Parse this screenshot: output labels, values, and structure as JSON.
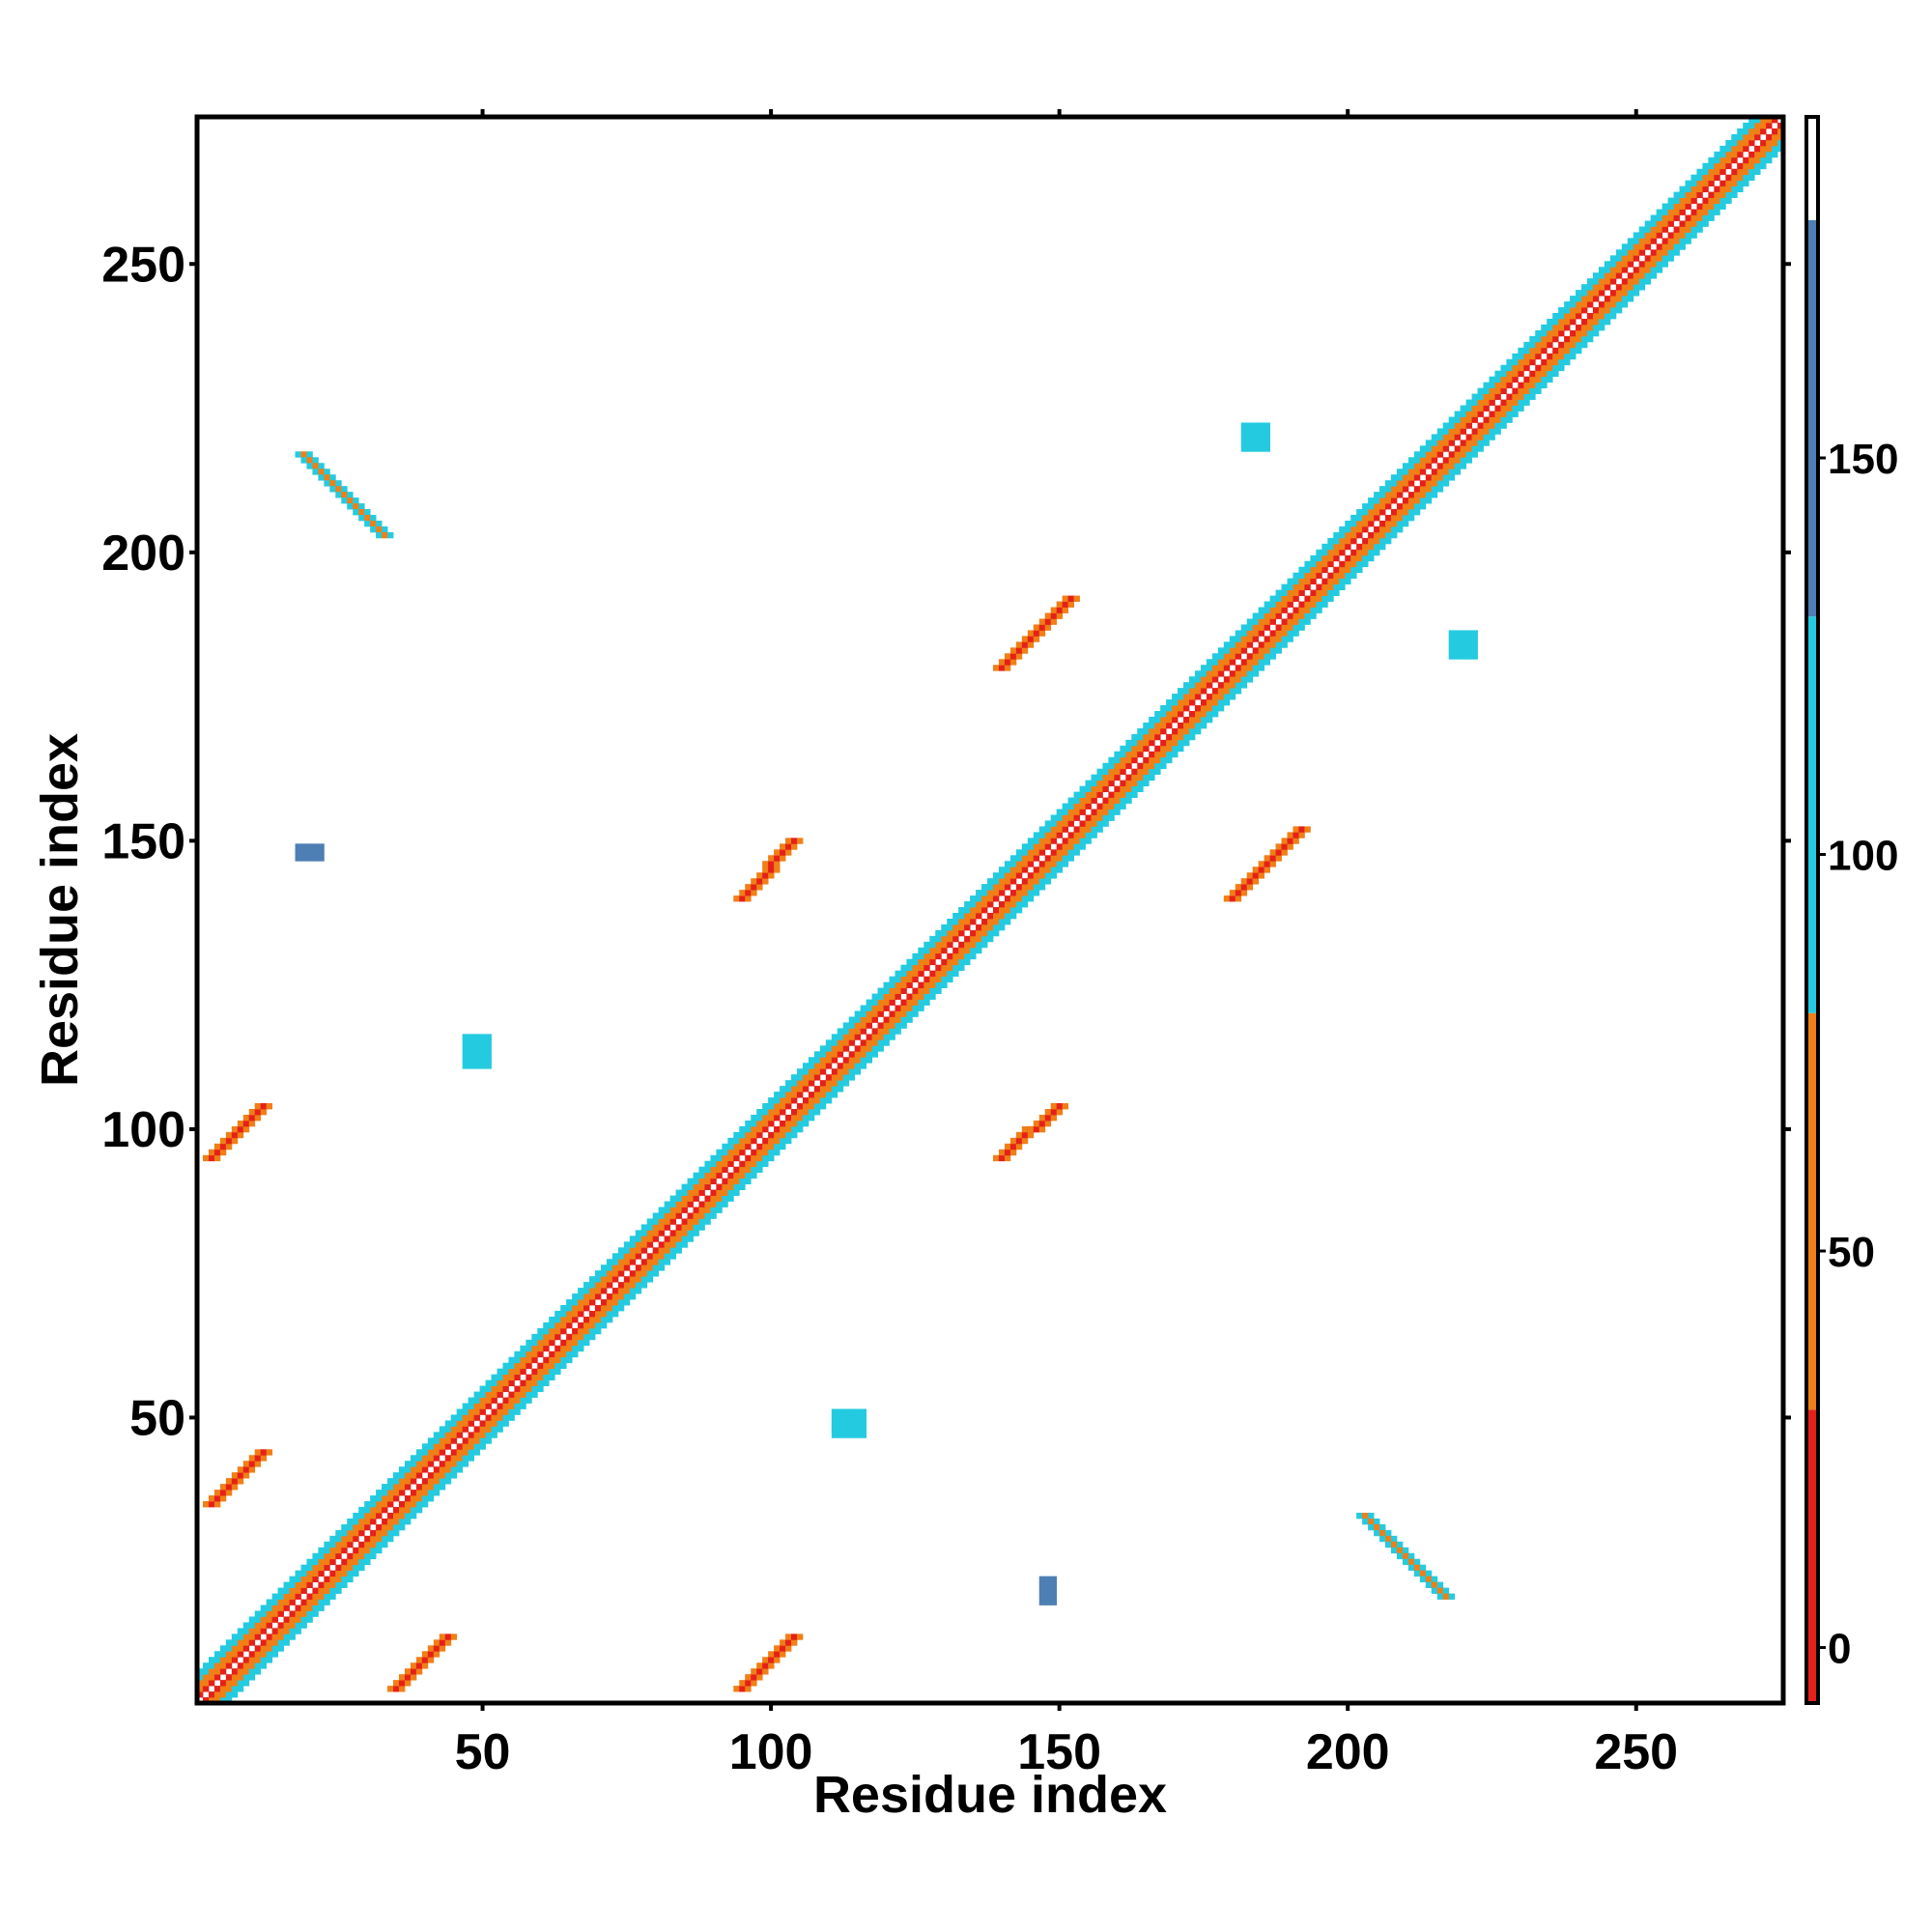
{
  "chart_data": {
    "type": "heatmap",
    "title": "",
    "xlabel": "Residue index",
    "ylabel": "Residue index",
    "xlim": [
      1,
      275
    ],
    "ylim": [
      1,
      275
    ],
    "x_ticks": [
      50,
      100,
      150,
      200,
      250
    ],
    "y_ticks": [
      50,
      100,
      150,
      200,
      250
    ],
    "colorbar": {
      "ticks": [
        0,
        50,
        100,
        150
      ],
      "range": [
        -7,
        193
      ],
      "bands": [
        {
          "from": -7,
          "to": 30,
          "color": "#e5201a"
        },
        {
          "from": 30,
          "to": 80,
          "color": "#f07f16"
        },
        {
          "from": 80,
          "to": 130,
          "color": "#24cbe0"
        },
        {
          "from": 130,
          "to": 180,
          "color": "#4e7fb4"
        },
        {
          "from": 180,
          "to": 193,
          "color": "#ffffff"
        }
      ]
    },
    "grid": false,
    "diagonal": {
      "from": 1,
      "to": 275,
      "band_width": 5
    },
    "contacts": [
      {
        "kind": "strand",
        "x": [
          35,
          44
        ],
        "y": [
          3,
          12
        ],
        "value": 5
      },
      {
        "kind": "strand",
        "x": [
          3,
          12
        ],
        "y": [
          35,
          44
        ],
        "value": 5
      },
      {
        "kind": "strand",
        "x": [
          95,
          104
        ],
        "y": [
          3,
          12
        ],
        "value": 5
      },
      {
        "kind": "strand",
        "x": [
          3,
          12
        ],
        "y": [
          95,
          104
        ],
        "value": 5
      },
      {
        "kind": "strand",
        "x": [
          140,
          150
        ],
        "y": [
          95,
          104
        ],
        "value": 5
      },
      {
        "kind": "strand",
        "x": [
          95,
          104
        ],
        "y": [
          140,
          150
        ],
        "value": 5
      },
      {
        "kind": "strand",
        "x": [
          180,
          192
        ],
        "y": [
          140,
          152
        ],
        "value": 5
      },
      {
        "kind": "strand",
        "x": [
          140,
          152
        ],
        "y": [
          180,
          192
        ],
        "value": 5
      },
      {
        "kind": "antistrand",
        "x": [
          19,
          33
        ],
        "y": [
          217,
          203
        ],
        "value": 55
      },
      {
        "kind": "antistrand",
        "x": [
          203,
          217
        ],
        "y": [
          33,
          19
        ],
        "value": 55
      },
      {
        "kind": "blob",
        "x": [
          111,
          116
        ],
        "y": [
          47,
          51
        ],
        "value": 105
      },
      {
        "kind": "blob",
        "x": [
          47,
          51
        ],
        "y": [
          111,
          116
        ],
        "value": 105
      },
      {
        "kind": "blob",
        "x": [
          18,
          22
        ],
        "y": [
          147,
          149
        ],
        "value": 130
      },
      {
        "kind": "blob",
        "x": [
          147,
          149
        ],
        "y": [
          18,
          22
        ],
        "value": 130
      },
      {
        "kind": "blob",
        "x": [
          182,
          186
        ],
        "y": [
          218,
          222
        ],
        "value": 105
      },
      {
        "kind": "blob",
        "x": [
          218,
          222
        ],
        "y": [
          182,
          186
        ],
        "value": 105
      }
    ]
  }
}
